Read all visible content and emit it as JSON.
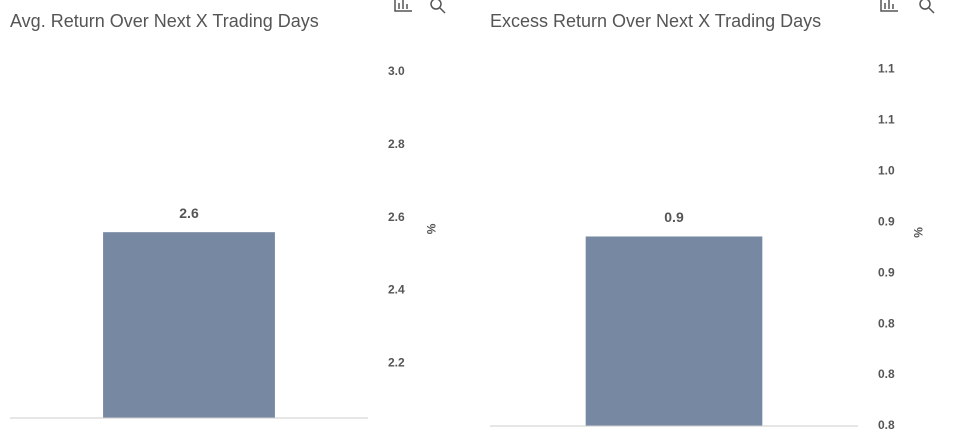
{
  "chart_data": [
    {
      "type": "bar",
      "title": "Avg. Return Over Next X Trading Days",
      "y_label": "%",
      "categories": [
        null
      ],
      "values": [
        2.56
      ],
      "value_labels": [
        "2.6"
      ],
      "color": "#7788a3",
      "ylim": [
        2.05,
        3.06
      ],
      "yticks": [
        2.2,
        2.4,
        2.6,
        2.8,
        {
          "value": 3,
          "label": "3.0"
        }
      ]
    },
    {
      "type": "bar",
      "title": "Excess Return Over Next X Trading Days",
      "y_label": "%",
      "categories": [
        null
      ],
      "values": [
        0.936
      ],
      "value_labels": [
        "0.9"
      ],
      "color": "#7788a3",
      "ylim": [
        0.75,
        1.12
      ],
      "yticks": [
        {
          "value": 0.75,
          "label": "0.8"
        },
        0.8,
        {
          "value": 0.85,
          "label": "0.8"
        },
        0.9,
        {
          "value": 0.95,
          "label": "0.9"
        },
        {
          "value": 1,
          "label": "1.0"
        },
        {
          "value": 1.05,
          "label": "1.1"
        },
        1.1
      ]
    }
  ]
}
